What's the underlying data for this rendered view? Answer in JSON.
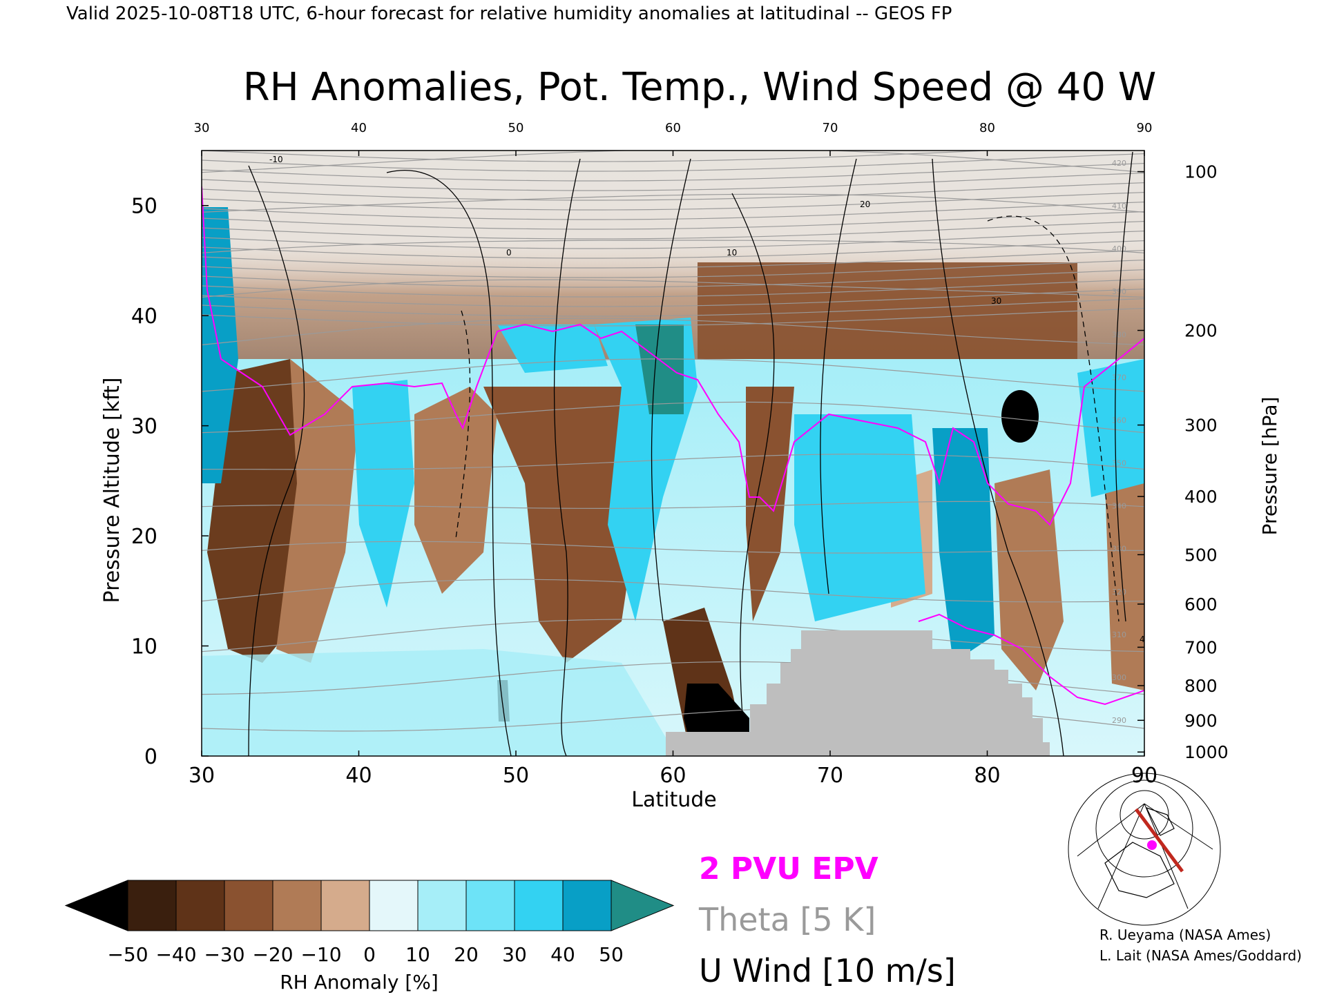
{
  "header": {
    "valid_line": "Valid 2025-10-08T18 UTC, 6-hour forecast for relative humidity anomalies at latitudinal -- GEOS FP",
    "title": "RH Anomalies, Pot. Temp., Wind Speed @ 40 W"
  },
  "chart_data": {
    "type": "heatmap",
    "title": "RH Anomalies, Pot. Temp., Wind Speed @ 40 W",
    "xlabel": "Latitude",
    "ylabel": "Pressure Altitude [kft]",
    "y2label": "Pressure [hPa]",
    "xlim": [
      30,
      90
    ],
    "ylim": [
      0,
      55
    ],
    "x_ticks": [
      "30",
      "40",
      "50",
      "60",
      "70",
      "80",
      "90"
    ],
    "y_ticks": [
      "0",
      "10",
      "20",
      "30",
      "40",
      "50"
    ],
    "pressure_ticks": [
      "100",
      "200",
      "300",
      "400",
      "500",
      "600",
      "700",
      "800",
      "900",
      "1000"
    ],
    "theta_levels": [
      "290",
      "300",
      "310",
      "320",
      "330",
      "340",
      "350",
      "360",
      "370",
      "380",
      "390",
      "400",
      "410",
      "420"
    ],
    "wind_levels": [
      "-10",
      "0",
      "10",
      "20",
      "30",
      "40"
    ],
    "colorbar": {
      "label": "RH Anomaly [%]",
      "ticks": [
        "-50",
        "-40",
        "-30",
        "-20",
        "-10",
        "0",
        "10",
        "20",
        "30",
        "40",
        "50"
      ],
      "colors": [
        "#000000",
        "#3a1f0e",
        "#5f3318",
        "#8a5230",
        "#b07b56",
        "#d5ab8c",
        "#efdcd0",
        "#e4f7fa",
        "#a6eef8",
        "#6de3f7",
        "#33d2f2",
        "#089fc6",
        "#208d86"
      ]
    },
    "topography_color": "#bebebe",
    "legend": {
      "epv": "2 PVU EPV",
      "theta": "Theta [5 K]",
      "wind": "U Wind [10 m/s]",
      "epv_color": "#ff00ff",
      "theta_color": "#9a9a9a",
      "wind_color": "#000000"
    }
  },
  "credits": {
    "line1": "R. Ueyama (NASA Ames)",
    "line2": "L. Lait (NASA Ames/Goddard)"
  }
}
